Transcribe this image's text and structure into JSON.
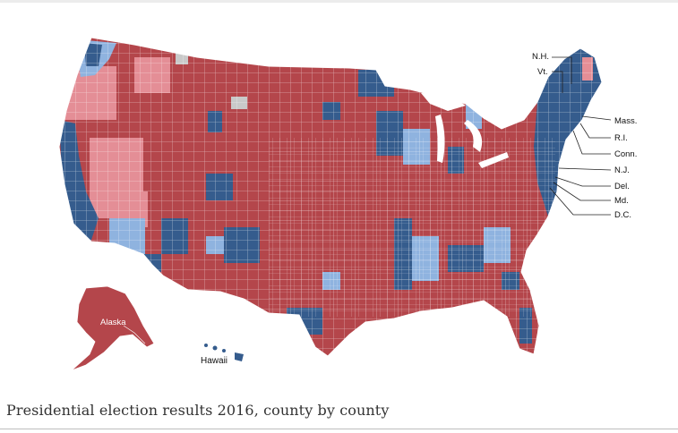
{
  "caption": "Presidential election results 2016, county by county",
  "colors": {
    "strong_republican": "#b4464b",
    "lean_republican": "#e48e96",
    "strong_democrat": "#355c8d",
    "lean_democrat": "#8fb3df",
    "no_data": "#c9c9c9",
    "county_border": "#ffffff"
  },
  "map": {
    "labels": {
      "nh": "N.H.",
      "vt": "Vt.",
      "mass": "Mass.",
      "ri": "R.I.",
      "conn": "Conn.",
      "nj": "N.J.",
      "del": "Del.",
      "md": "Md.",
      "dc": "D.C.",
      "alaska": "Alaska",
      "hawaii": "Hawaii"
    }
  }
}
